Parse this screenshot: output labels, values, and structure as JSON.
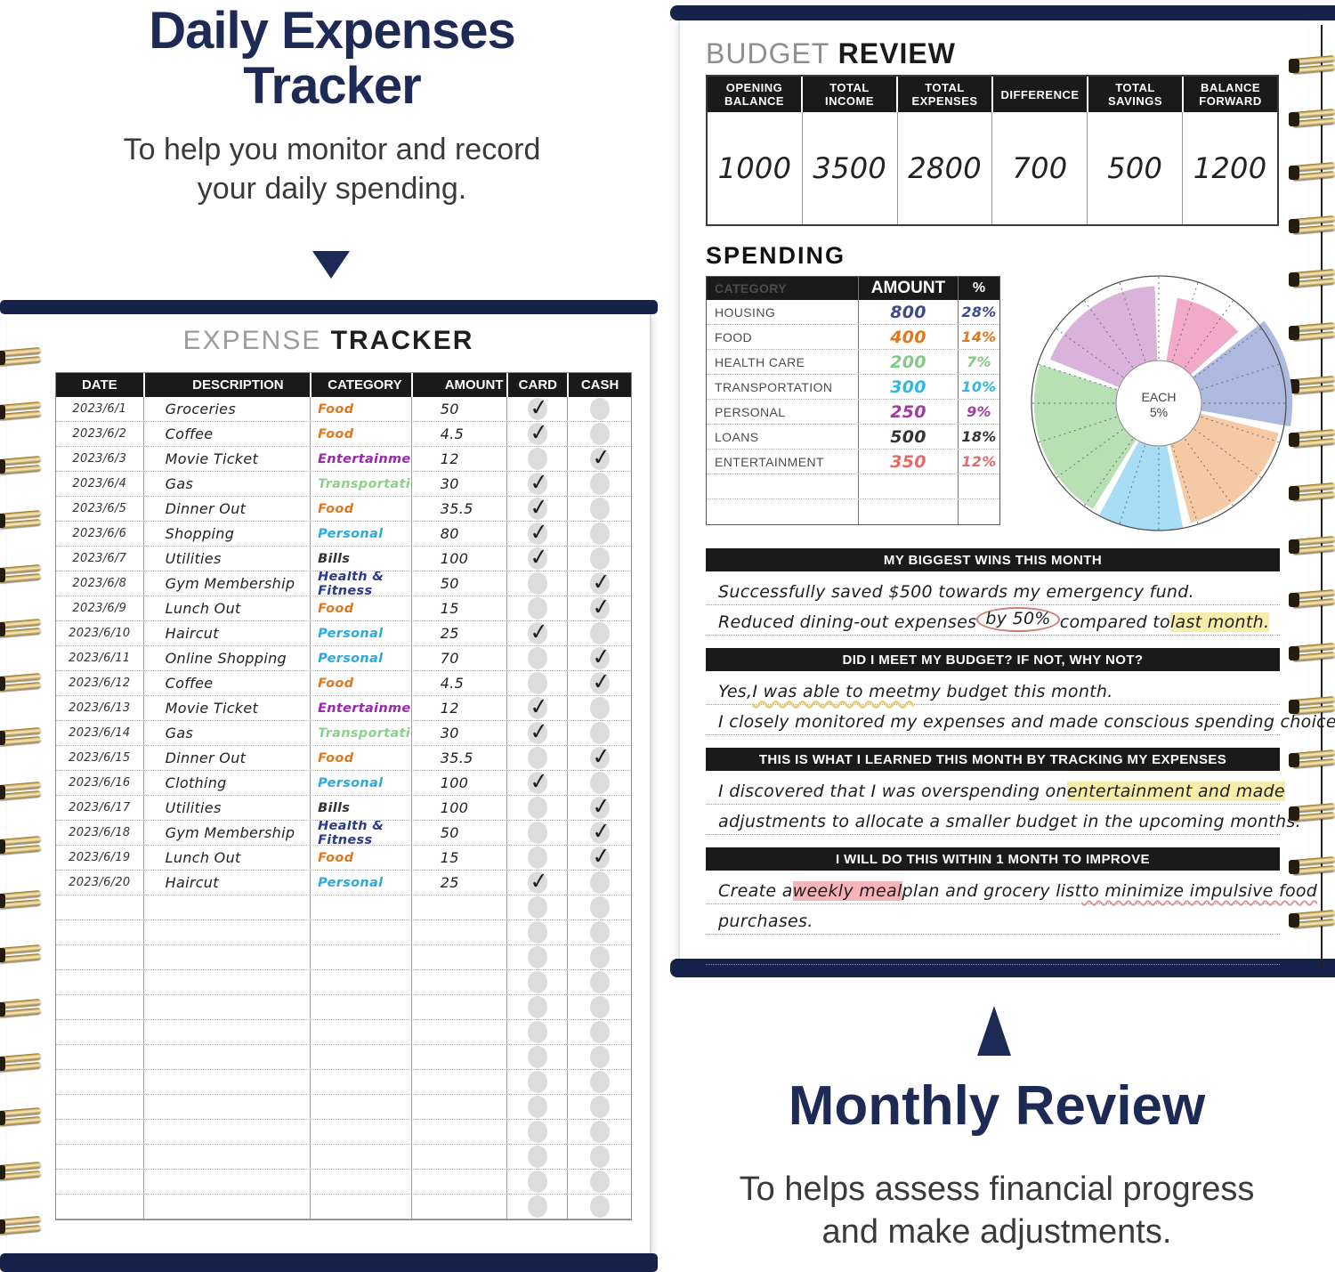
{
  "intro_left": {
    "title_line1": "Daily Expenses",
    "title_line2": "Tracker",
    "subtitle_line1": "To help you monitor and record",
    "subtitle_line2": "your daily spending."
  },
  "outro_right": {
    "title": "Monthly Review",
    "subtitle_line1": "To helps assess financial progress",
    "subtitle_line2": "and make adjustments."
  },
  "left_page": {
    "title_light": "EXPENSE",
    "title_bold": "TRACKER",
    "columns": [
      "DATE",
      "DESCRIPTION",
      "CATEGORY",
      "AMOUNT",
      "CARD",
      "CASH"
    ],
    "category_colors": {
      "Food": "#e2761b",
      "Entertainment": "#9b27af",
      "Transportation": "#8fd08c",
      "Personal": "#29aae1",
      "Bills": "#333333",
      "Health & Fitness": "#2a3a8c"
    },
    "rows": [
      {
        "date": "2023/6/1",
        "description": "Groceries",
        "category": "Food",
        "amount": "50",
        "paid": "card"
      },
      {
        "date": "2023/6/2",
        "description": "Coffee",
        "category": "Food",
        "amount": "4.5",
        "paid": "card"
      },
      {
        "date": "2023/6/3",
        "description": "Movie Ticket",
        "category": "Entertainment",
        "amount": "12",
        "paid": "cash"
      },
      {
        "date": "2023/6/4",
        "description": "Gas",
        "category": "Transportation",
        "amount": "30",
        "paid": "card"
      },
      {
        "date": "2023/6/5",
        "description": "Dinner Out",
        "category": "Food",
        "amount": "35.5",
        "paid": "card"
      },
      {
        "date": "2023/6/6",
        "description": "Shopping",
        "category": "Personal",
        "amount": "80",
        "paid": "card"
      },
      {
        "date": "2023/6/7",
        "description": "Utilities",
        "category": "Bills",
        "amount": "100",
        "paid": "card"
      },
      {
        "date": "2023/6/8",
        "description": "Gym Membership",
        "category": "Health & Fitness",
        "amount": "50",
        "paid": "cash"
      },
      {
        "date": "2023/6/9",
        "description": "Lunch Out",
        "category": "Food",
        "amount": "15",
        "paid": "cash"
      },
      {
        "date": "2023/6/10",
        "description": "Haircut",
        "category": "Personal",
        "amount": "25",
        "paid": "card"
      },
      {
        "date": "2023/6/11",
        "description": "Online Shopping",
        "category": "Personal",
        "amount": "70",
        "paid": "cash"
      },
      {
        "date": "2023/6/12",
        "description": "Coffee",
        "category": "Food",
        "amount": "4.5",
        "paid": "cash"
      },
      {
        "date": "2023/6/13",
        "description": "Movie Ticket",
        "category": "Entertainment",
        "amount": "12",
        "paid": "card"
      },
      {
        "date": "2023/6/14",
        "description": "Gas",
        "category": "Transportation",
        "amount": "30",
        "paid": "card"
      },
      {
        "date": "2023/6/15",
        "description": "Dinner Out",
        "category": "Food",
        "amount": "35.5",
        "paid": "cash"
      },
      {
        "date": "2023/6/16",
        "description": "Clothing",
        "category": "Personal",
        "amount": "100",
        "paid": "card"
      },
      {
        "date": "2023/6/17",
        "description": "Utilities",
        "category": "Bills",
        "amount": "100",
        "paid": "cash"
      },
      {
        "date": "2023/6/18",
        "description": "Gym Membership",
        "category": "Health & Fitness",
        "amount": "50",
        "paid": "cash"
      },
      {
        "date": "2023/6/19",
        "description": "Lunch Out",
        "category": "Food",
        "amount": "15",
        "paid": "cash"
      },
      {
        "date": "2023/6/20",
        "description": "Haircut",
        "category": "Personal",
        "amount": "25",
        "paid": "card"
      }
    ],
    "empty_row_count": 13
  },
  "right_page": {
    "budget_review": {
      "title_light": "BUDGET",
      "title_bold": "REVIEW",
      "columns": [
        [
          "OPENING",
          "BALANCE"
        ],
        [
          "TOTAL",
          "INCOME"
        ],
        [
          "TOTAL",
          "EXPENSES"
        ],
        [
          "DIFFERENCE"
        ],
        [
          "TOTAL",
          "SAVINGS"
        ],
        [
          "BALANCE",
          "FORWARD"
        ]
      ],
      "values": [
        "1000",
        "3500",
        "2800",
        "700",
        "500",
        "1200"
      ]
    },
    "spending": {
      "title": "SPENDING",
      "columns": [
        "CATEGORY",
        "AMOUNT",
        "%"
      ],
      "rows": [
        {
          "category": "HOUSING",
          "amount": "800",
          "pct": "28%",
          "color": "#3d4b8e"
        },
        {
          "category": "FOOD",
          "amount": "400",
          "pct": "14%",
          "color": "#e2761b"
        },
        {
          "category": "HEALTH CARE",
          "amount": "200",
          "pct": "7%",
          "color": "#85c785"
        },
        {
          "category": "TRANSPORTATION",
          "amount": "300",
          "pct": "10%",
          "color": "#2fb9e0"
        },
        {
          "category": "PERSONAL",
          "amount": "250",
          "pct": "9%",
          "color": "#a03a9e"
        },
        {
          "category": "LOANS",
          "amount": "500",
          "pct": "18%",
          "color": "#333333"
        },
        {
          "category": "ENTERTAINMENT",
          "amount": "350",
          "pct": "12%",
          "color": "#e36a6a"
        }
      ],
      "empty_row_count": 2
    },
    "sections": [
      {
        "header": "MY BIGGEST WINS THIS MONTH",
        "lines": [
          [
            {
              "t": "Successfully saved $500 towards my emergency fund.",
              "s": "plain"
            }
          ],
          [
            {
              "t": "Reduced dining-out expenses ",
              "s": "plain"
            },
            {
              "t": "by 50%",
              "s": "circle"
            },
            {
              "t": " compared to ",
              "s": "plain"
            },
            {
              "t": "last month.",
              "s": "hl-yellow"
            }
          ]
        ]
      },
      {
        "header": "DID I MEET MY BUDGET? IF NOT, WHY NOT?",
        "lines": [
          [
            {
              "t": "Yes, ",
              "s": "plain"
            },
            {
              "t": "I was able to meet",
              "s": "ul-yellow"
            },
            {
              "t": " my budget this month.",
              "s": "plain"
            }
          ],
          [
            {
              "t": "I closely monitored my expenses and made conscious spending choices.",
              "s": "plain"
            }
          ]
        ]
      },
      {
        "header": "THIS IS WHAT I LEARNED THIS MONTH BY TRACKING MY EXPENSES",
        "lines": [
          [
            {
              "t": "I discovered that I was overspending on ",
              "s": "plain"
            },
            {
              "t": "entertainment and made",
              "s": "hl-yellow"
            }
          ],
          [
            {
              "t": "adjustments to allocate a smaller budget in the upcoming months.",
              "s": "plain"
            }
          ]
        ]
      },
      {
        "header": "I WILL DO THIS WITHIN 1 MONTH TO IMPROVE",
        "lines": [
          [
            {
              "t": "Create a ",
              "s": "plain"
            },
            {
              "t": "weekly meal",
              "s": "hl-pink"
            },
            {
              "t": " plan and grocery list ",
              "s": "plain"
            },
            {
              "t": "to minimize impulsive food",
              "s": "ul-pink"
            }
          ],
          [
            {
              "t": "purchases.",
              "s": "plain"
            }
          ],
          []
        ]
      }
    ]
  },
  "chart_data": {
    "type": "pie",
    "title": "SPENDING",
    "center_label_line1": "EACH",
    "center_label_line2": "5%",
    "ring_sectors": 20,
    "sector_pct": 5,
    "categories": [
      "HOUSING",
      "FOOD",
      "HEALTH CARE",
      "TRANSPORTATION",
      "PERSONAL",
      "LOANS",
      "ENTERTAINMENT"
    ],
    "amounts": [
      800,
      400,
      200,
      300,
      250,
      500,
      350
    ],
    "percentages": [
      28,
      14,
      7,
      10,
      9,
      18,
      12
    ],
    "start_deg": 8,
    "gap_deg": 4,
    "slices": [
      {
        "color_name": "pink",
        "sweep_deg": 42,
        "radius_factor": 0.84,
        "color": "#f1aac8"
      },
      {
        "color_name": "periwinkle",
        "sweep_deg": 52,
        "radius_factor": 1.05,
        "color": "#aeb9e0"
      },
      {
        "color_name": "peach",
        "sweep_deg": 65,
        "radius_factor": 0.97,
        "color": "#f6c9a5"
      },
      {
        "color_name": "light-blue",
        "sweep_deg": 43,
        "radius_factor": 1.0,
        "color": "#a9ddf5"
      },
      {
        "color_name": "green",
        "sweep_deg": 80,
        "radius_factor": 0.98,
        "color": "#b7e0b4"
      },
      {
        "color_name": "plum",
        "sweep_deg": 70,
        "radius_factor": 0.92,
        "color": "#d9b3da"
      }
    ]
  },
  "colors": {
    "navy": "#1c2a55",
    "bar_navy": "#16224a",
    "header_black": "#1a1a1a",
    "circle_gray": "#dcdcdc",
    "hl_yellow": "#f7edaa",
    "hl_pink": "#f6b3b8"
  }
}
